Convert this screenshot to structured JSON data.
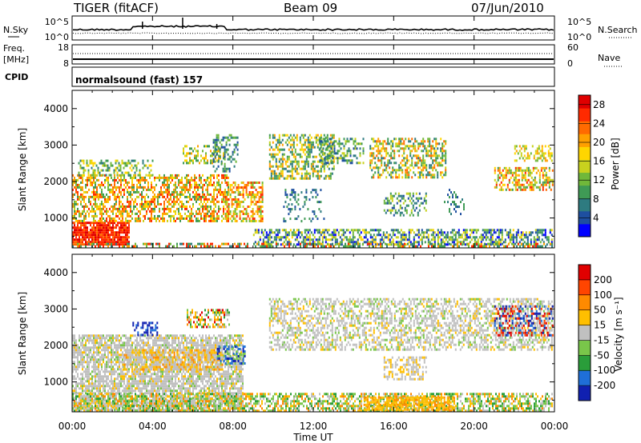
{
  "header": {
    "station": "TIGER (fitACF)",
    "beam": "Beam 09",
    "date": "07/Jun/2010"
  },
  "nsky_panel": {
    "left_label": "N.Sky",
    "right_label": "N.Search",
    "left_ticks": [
      "10^5",
      "10^0"
    ],
    "right_ticks": [
      "10^5",
      "10^0"
    ]
  },
  "freq_panel": {
    "left_label_line1": "Freq.",
    "left_label_line2": "[MHz]",
    "right_label": "Nave",
    "left_ticks": [
      "18",
      "8"
    ],
    "right_ticks": [
      "60",
      "0"
    ]
  },
  "cpid_panel": {
    "label": "CPID",
    "text": "normalsound (fast) 157"
  },
  "x_axis": {
    "label": "Time UT",
    "ticks": [
      "00:00",
      "04:00",
      "08:00",
      "12:00",
      "16:00",
      "20:00",
      "00:00"
    ],
    "range_hours": [
      0,
      24
    ]
  },
  "chart_data": [
    {
      "type": "heatmap",
      "name": "power",
      "ylabel": "Slant Range [km]",
      "ylim": [
        180,
        4500
      ],
      "yticks": [
        "1000",
        "2000",
        "3000",
        "4000"
      ],
      "colorbar_label": "Power [dB]",
      "colorbar_ticks": [
        "4",
        "8",
        "12",
        "16",
        "20",
        "24",
        "28"
      ],
      "colorbar_colors": [
        "#0000ff",
        "#1e4fa0",
        "#2e7b80",
        "#3f9a55",
        "#70b83a",
        "#c8d21e",
        "#ffd600",
        "#ffa000",
        "#ff6a00",
        "#ff2a00",
        "#e00000"
      ],
      "colorbar_range": [
        0,
        30
      ]
    },
    {
      "type": "heatmap",
      "name": "velocity",
      "ylabel": "Slant Range [km]",
      "ylim": [
        180,
        4500
      ],
      "yticks": [
        "1000",
        "2000",
        "3000",
        "4000"
      ],
      "colorbar_label": "Velocity [m s⁻¹]",
      "colorbar_ticks": [
        "200",
        "100",
        "50",
        "15",
        "-15",
        "-50",
        "-100",
        "-200"
      ],
      "colorbar_colors": [
        "#1020b0",
        "#1f6fd8",
        "#2a9d3a",
        "#79c64a",
        "#c0c0c0",
        "#ffbf00",
        "#ff8a00",
        "#ff4500",
        "#e00000"
      ]
    }
  ]
}
